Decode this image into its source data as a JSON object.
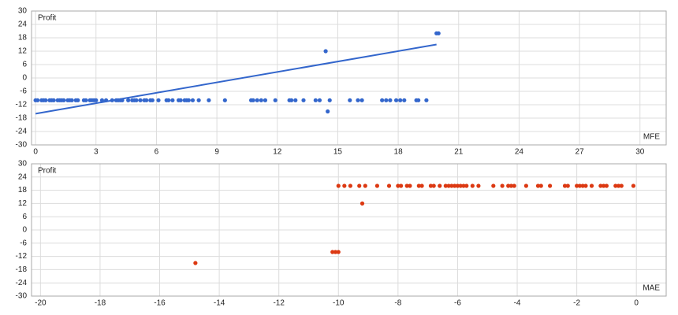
{
  "chart_data": [
    {
      "type": "scatter",
      "y_axis_label": "Profit",
      "x_axis_label": "MFE",
      "color": "#3366cc",
      "grid": true,
      "xlim": [
        -0.2,
        31.3
      ],
      "ylim": [
        -30,
        30
      ],
      "xticks": [
        0,
        3,
        6,
        9,
        12,
        15,
        18,
        21,
        24,
        27,
        30
      ],
      "yticks": [
        -30,
        -24,
        -18,
        -12,
        -6,
        0,
        6,
        12,
        18,
        24,
        30
      ],
      "x": [
        0,
        0.1,
        0.3,
        0.4,
        0.5,
        0.7,
        0.8,
        0.9,
        1.1,
        1.2,
        1.3,
        1.4,
        1.6,
        1.7,
        1.8,
        2.0,
        2.1,
        2.4,
        2.5,
        2.7,
        2.8,
        2.9,
        3.0,
        3.3,
        3.5,
        3.8,
        4.0,
        4.1,
        4.2,
        4.3,
        4.6,
        4.8,
        4.9,
        5.0,
        5.2,
        5.4,
        5.5,
        5.7,
        5.8,
        6.1,
        6.5,
        6.6,
        6.8,
        7.1,
        7.2,
        7.4,
        7.5,
        7.6,
        7.8,
        8.1,
        8.6,
        9.4,
        10.7,
        10.8,
        11.0,
        11.2,
        11.4,
        11.9,
        12.6,
        12.7,
        12.9,
        13.3,
        13.9,
        14.1,
        14.6,
        15.6,
        16.0,
        16.2,
        17.2,
        17.4,
        17.6,
        17.9,
        18.1,
        18.3,
        18.9,
        19.0,
        19.4,
        14.4,
        14.5,
        20.0,
        19.9
      ],
      "values": [
        -10,
        -10,
        -10,
        -10,
        -10,
        -10,
        -10,
        -10,
        -10,
        -10,
        -10,
        -10,
        -10,
        -10,
        -10,
        -10,
        -10,
        -10,
        -10,
        -10,
        -10,
        -10,
        -10,
        -10,
        -10,
        -10,
        -10,
        -10,
        -10,
        -10,
        -10,
        -10,
        -10,
        -10,
        -10,
        -10,
        -10,
        -10,
        -10,
        -10,
        -10,
        -10,
        -10,
        -10,
        -10,
        -10,
        -10,
        -10,
        -10,
        -10,
        -10,
        -10,
        -10,
        -10,
        -10,
        -10,
        -10,
        -10,
        -10,
        -10,
        -10,
        -10,
        -10,
        -10,
        -10,
        -10,
        -10,
        -10,
        -10,
        -10,
        -10,
        -10,
        -10,
        -10,
        -10,
        -10,
        -10,
        12,
        -15,
        20,
        20
      ],
      "trendline": {
        "x": [
          0,
          19.9
        ],
        "values": [
          -16,
          15
        ]
      }
    },
    {
      "type": "scatter",
      "y_axis_label": "Profit",
      "x_axis_label": "MAE",
      "color": "#dc3912",
      "grid": true,
      "xlim": [
        -20.3,
        1
      ],
      "ylim": [
        -30,
        30
      ],
      "xticks": [
        -20,
        -18,
        -16,
        -14,
        -12,
        -10,
        -8,
        -6,
        -4,
        -2,
        0
      ],
      "yticks": [
        -30,
        -24,
        -18,
        -12,
        -6,
        0,
        6,
        12,
        18,
        24,
        30
      ],
      "x": [
        -10.0,
        -9.8,
        -9.6,
        -9.3,
        -9.1,
        -8.7,
        -8.3,
        -8.0,
        -7.9,
        -7.7,
        -7.6,
        -7.3,
        -7.2,
        -6.9,
        -6.8,
        -6.6,
        -6.4,
        -6.3,
        -6.2,
        -6.1,
        -6.0,
        -5.9,
        -5.8,
        -5.7,
        -5.5,
        -5.3,
        -4.8,
        -4.5,
        -4.3,
        -4.2,
        -4.1,
        -3.7,
        -3.3,
        -3.2,
        -2.9,
        -2.4,
        -2.3,
        -2.0,
        -1.9,
        -1.8,
        -1.7,
        -1.5,
        -1.2,
        -1.1,
        -1.0,
        -0.7,
        -0.6,
        -0.5,
        -0.1,
        -9.2,
        -10.2,
        -10.1,
        -10.0,
        -14.8
      ],
      "values": [
        20,
        20,
        20,
        20,
        20,
        20,
        20,
        20,
        20,
        20,
        20,
        20,
        20,
        20,
        20,
        20,
        20,
        20,
        20,
        20,
        20,
        20,
        20,
        20,
        20,
        20,
        20,
        20,
        20,
        20,
        20,
        20,
        20,
        20,
        20,
        20,
        20,
        20,
        20,
        20,
        20,
        20,
        20,
        20,
        20,
        20,
        20,
        20,
        20,
        12,
        -10,
        -10,
        -10,
        -15
      ]
    }
  ]
}
